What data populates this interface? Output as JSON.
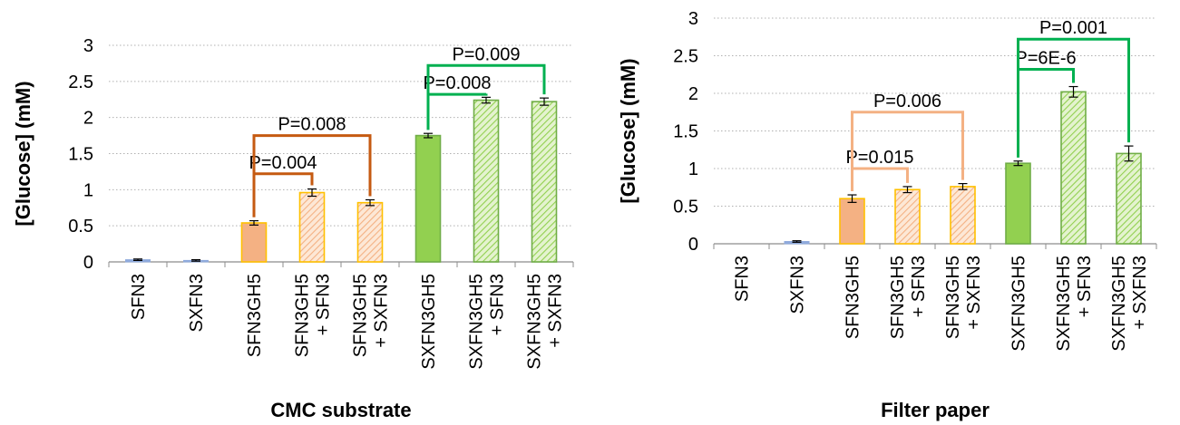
{
  "chart_data": [
    {
      "type": "bar",
      "title": "",
      "xlabel": "CMC substrate",
      "ylabel": "[Glucose] (mM)",
      "ylim": [
        0,
        3
      ],
      "yticks": [
        "0",
        "0.5",
        "1",
        "1.5",
        "2",
        "2.5",
        "3"
      ],
      "grid": "horizontal dotted",
      "categories": [
        [
          "SFN3"
        ],
        [
          "SXFN3"
        ],
        [
          "SFN3GH5"
        ],
        [
          "SFN3GH5",
          "+ SFN3"
        ],
        [
          "SFN3GH5",
          "+ SXFN3"
        ],
        [
          "SXFN3GH5"
        ],
        [
          "SXFN3GH5",
          "+ SFN3"
        ],
        [
          "SXFN3GH5",
          "+ SXFN3"
        ]
      ],
      "values": [
        0.03,
        0.02,
        0.54,
        0.96,
        0.82,
        1.75,
        2.24,
        2.22
      ],
      "errors": [
        0.01,
        0.01,
        0.03,
        0.05,
        0.04,
        0.03,
        0.04,
        0.05
      ],
      "colors": {
        "low": "#8faadc",
        "orange": "#f4b183",
        "green": "#92d050",
        "orange_edge": "#ffc000",
        "green_edge": "#70ad47"
      },
      "annotations": [
        {
          "label": "P=0.004",
          "from": 2,
          "to": 3,
          "y": 1.22,
          "color": "#c55a11"
        },
        {
          "label": "P=0.008",
          "from": 2,
          "to": 4,
          "y": 1.75,
          "color": "#c55a11"
        },
        {
          "label": "P=0.008",
          "from": 5,
          "to": 6,
          "y": 2.32,
          "color": "#00b050"
        },
        {
          "label": "P=0.009",
          "from": 5,
          "to": 7,
          "y": 2.72,
          "color": "#00b050"
        }
      ]
    },
    {
      "type": "bar",
      "title": "",
      "xlabel": "Filter paper",
      "ylabel": "[Glucose] (mM)",
      "ylim": [
        0,
        3
      ],
      "yticks": [
        "0",
        "0.5",
        "1",
        "1.5",
        "2",
        "2.5",
        "3"
      ],
      "grid": "horizontal dotted",
      "categories": [
        [
          "SFN3"
        ],
        [
          "SXFN3"
        ],
        [
          "SFN3GH5"
        ],
        [
          "SFN3GH5",
          "+ SFN3"
        ],
        [
          "SFN3GH5",
          "+ SXFN3"
        ],
        [
          "SXFN3GH5"
        ],
        [
          "SXFN3GH5",
          "+ SFN3"
        ],
        [
          "SXFN3GH5",
          "+ SXFN3"
        ]
      ],
      "values": [
        0.0,
        0.03,
        0.6,
        0.72,
        0.76,
        1.07,
        2.02,
        1.2
      ],
      "errors": [
        0.0,
        0.01,
        0.05,
        0.04,
        0.04,
        0.03,
        0.07,
        0.1
      ],
      "colors": {
        "low": "#8faadc",
        "orange": "#f4b183",
        "green": "#92d050",
        "orange_edge": "#ffc000",
        "green_edge": "#70ad47"
      },
      "annotations": [
        {
          "label": "P=0.015",
          "from": 2,
          "to": 3,
          "y": 1.0,
          "color": "#f4b183"
        },
        {
          "label": "P=0.006",
          "from": 2,
          "to": 4,
          "y": 1.75,
          "color": "#f4b183"
        },
        {
          "label": "P=6E-6",
          "from": 5,
          "to": 6,
          "y": 2.32,
          "color": "#00b050"
        },
        {
          "label": "P=0.001",
          "from": 5,
          "to": 7,
          "y": 2.72,
          "color": "#00b050"
        }
      ]
    }
  ]
}
